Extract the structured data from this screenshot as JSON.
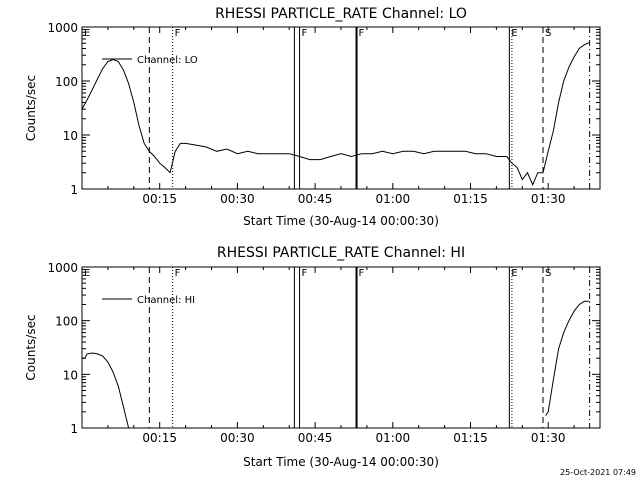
{
  "footer": {
    "stamp": "25-Oct-2021 07:49"
  },
  "chart_data": [
    {
      "type": "line",
      "title": "RHESSI PARTICLE_RATE Channel: LO",
      "xlabel": "Start Time (30-Aug-14 00:00:30)",
      "ylabel": "Counts/sec",
      "xlim_minutes": [
        0,
        100
      ],
      "ylim": [
        1,
        1000
      ],
      "y_scale": "log",
      "x_ticks": [
        {
          "minute": 15,
          "label": "00:15"
        },
        {
          "minute": 30,
          "label": "00:30"
        },
        {
          "minute": 45,
          "label": "00:45"
        },
        {
          "minute": 60,
          "label": "01:00"
        },
        {
          "minute": 75,
          "label": "01:15"
        },
        {
          "minute": 90,
          "label": "01:30"
        }
      ],
      "y_ticks": [
        {
          "value": 1,
          "label": "1"
        },
        {
          "value": 10,
          "label": "10"
        },
        {
          "value": 100,
          "label": "100"
        },
        {
          "value": 1000,
          "label": "1000"
        }
      ],
      "legend": {
        "label": "Channel: LO",
        "placement": "top-left"
      },
      "event_markers": [
        {
          "minute": 0,
          "label": "E",
          "style": "dashed"
        },
        {
          "minute": 13,
          "label": "",
          "style": "dashed"
        },
        {
          "minute": 17.5,
          "label": "F",
          "style": "dotted"
        },
        {
          "minute": 41,
          "label": "",
          "style": "solid"
        },
        {
          "minute": 42,
          "label": "F",
          "style": "solid"
        },
        {
          "minute": 53,
          "label": "F",
          "style": "solid-thick"
        },
        {
          "minute": 82.5,
          "label": "E",
          "style": "solid"
        },
        {
          "minute": 83,
          "label": "",
          "style": "dotted"
        },
        {
          "minute": 89,
          "label": "S",
          "style": "dashed"
        },
        {
          "minute": 98,
          "label": "",
          "style": "dash-dot"
        }
      ],
      "series": [
        {
          "name": "Channel: LO",
          "points": [
            [
              0,
              30
            ],
            [
              1,
              45
            ],
            [
              2,
              70
            ],
            [
              3,
              110
            ],
            [
              4,
              170
            ],
            [
              5,
              230
            ],
            [
              6,
              250
            ],
            [
              7,
              230
            ],
            [
              8,
              160
            ],
            [
              9,
              90
            ],
            [
              10,
              40
            ],
            [
              11,
              15
            ],
            [
              12,
              7
            ],
            [
              13,
              5
            ],
            [
              14,
              4
            ],
            [
              15,
              3
            ],
            [
              16,
              2.5
            ],
            [
              17,
              2
            ],
            [
              18,
              5
            ],
            [
              19,
              7
            ],
            [
              20,
              7
            ],
            [
              22,
              6.5
            ],
            [
              24,
              6
            ],
            [
              26,
              5
            ],
            [
              28,
              5.5
            ],
            [
              30,
              4.5
            ],
            [
              32,
              5
            ],
            [
              34,
              4.5
            ],
            [
              36,
              4.5
            ],
            [
              38,
              4.5
            ],
            [
              40,
              4.5
            ],
            [
              42,
              4
            ],
            [
              44,
              3.5
            ],
            [
              46,
              3.5
            ],
            [
              48,
              4
            ],
            [
              50,
              4.5
            ],
            [
              52,
              4
            ],
            [
              54,
              4.5
            ],
            [
              56,
              4.5
            ],
            [
              58,
              5
            ],
            [
              60,
              4.5
            ],
            [
              62,
              5
            ],
            [
              64,
              5
            ],
            [
              66,
              4.5
            ],
            [
              68,
              5
            ],
            [
              70,
              5
            ],
            [
              72,
              5
            ],
            [
              74,
              5
            ],
            [
              76,
              4.5
            ],
            [
              78,
              4.5
            ],
            [
              80,
              4
            ],
            [
              82,
              4
            ],
            [
              83,
              3
            ],
            [
              84,
              2.5
            ],
            [
              85,
              1.5
            ],
            [
              86,
              2
            ],
            [
              87,
              1.2
            ],
            [
              88,
              2
            ],
            [
              89,
              2
            ],
            [
              90,
              5
            ],
            [
              91,
              12
            ],
            [
              92,
              40
            ],
            [
              93,
              100
            ],
            [
              94,
              180
            ],
            [
              95,
              280
            ],
            [
              96,
              400
            ],
            [
              97,
              470
            ],
            [
              98,
              520
            ]
          ]
        }
      ]
    },
    {
      "type": "line",
      "title": "RHESSI PARTICLE_RATE Channel: HI",
      "xlabel": "Start Time (30-Aug-14 00:00:30)",
      "ylabel": "Counts/sec",
      "xlim_minutes": [
        0,
        100
      ],
      "ylim": [
        1,
        1000
      ],
      "y_scale": "log",
      "x_ticks": [
        {
          "minute": 15,
          "label": "00:15"
        },
        {
          "minute": 30,
          "label": "00:30"
        },
        {
          "minute": 45,
          "label": "00:45"
        },
        {
          "minute": 60,
          "label": "01:00"
        },
        {
          "minute": 75,
          "label": "01:15"
        },
        {
          "minute": 90,
          "label": "01:30"
        }
      ],
      "y_ticks": [
        {
          "value": 1,
          "label": "1"
        },
        {
          "value": 10,
          "label": "10"
        },
        {
          "value": 100,
          "label": "100"
        },
        {
          "value": 1000,
          "label": "1000"
        }
      ],
      "legend": {
        "label": "Channel: HI",
        "placement": "top-left"
      },
      "event_markers": [
        {
          "minute": 0,
          "label": "E",
          "style": "dashed"
        },
        {
          "minute": 13,
          "label": "",
          "style": "dashed"
        },
        {
          "minute": 17.5,
          "label": "F",
          "style": "dotted"
        },
        {
          "minute": 41,
          "label": "",
          "style": "solid"
        },
        {
          "minute": 42,
          "label": "F",
          "style": "solid"
        },
        {
          "minute": 53,
          "label": "F",
          "style": "solid-thick"
        },
        {
          "minute": 82.5,
          "label": "E",
          "style": "solid"
        },
        {
          "minute": 83,
          "label": "",
          "style": "dotted"
        },
        {
          "minute": 89,
          "label": "S",
          "style": "dashed"
        },
        {
          "minute": 98,
          "label": "",
          "style": "dash-dot"
        }
      ],
      "series": [
        {
          "name": "Channel: HI",
          "points": [
            [
              0,
              20
            ],
            [
              0.5,
              20
            ],
            [
              1,
              24
            ],
            [
              2,
              25
            ],
            [
              3,
              24
            ],
            [
              4,
              22
            ],
            [
              5,
              17
            ],
            [
              6,
              11
            ],
            [
              7,
              6
            ],
            [
              8,
              2.5
            ],
            [
              9,
              1
            ]
          ]
        },
        {
          "name": "Channel: HI",
          "points": [
            [
              89.5,
              1.7
            ],
            [
              90,
              2
            ],
            [
              91,
              8
            ],
            [
              92,
              30
            ],
            [
              93,
              60
            ],
            [
              94,
              100
            ],
            [
              95,
              150
            ],
            [
              96,
              200
            ],
            [
              97,
              230
            ],
            [
              98,
              230
            ]
          ]
        }
      ]
    }
  ]
}
